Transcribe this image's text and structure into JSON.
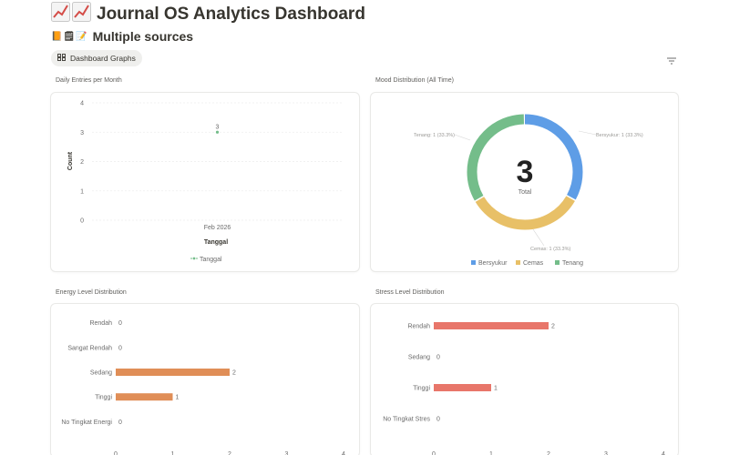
{
  "page": {
    "title": "Journal OS Analytics Dashboard",
    "title_icon": "chart-increasing-icon",
    "subtitle": "Multiple sources",
    "subtitle_icons": "📙🗒📝"
  },
  "view_tab": {
    "label": "Dashboard Graphs",
    "icon": "grid-icon"
  },
  "colors": {
    "bersyukur": "#5e9de6",
    "cemas": "#e8c067",
    "tenang": "#74bd8a",
    "energy_bar": "#e08e57",
    "stress_bar": "#e8766a",
    "line": "#74bd8a"
  },
  "charts": [
    {
      "label": "Daily Entries per Month",
      "chart_data": {
        "type": "line",
        "x": [
          "Feb 2026"
        ],
        "series": [
          {
            "name": "Tanggal",
            "values": [
              3
            ]
          }
        ],
        "xlabel": "Tanggal",
        "ylabel": "Count",
        "ylim": [
          0,
          4
        ],
        "yticks": [
          "0",
          "1",
          "2",
          "3",
          "4"
        ],
        "data_labels": [
          "3"
        ],
        "legend": "bottom",
        "grid": true
      }
    },
    {
      "label": "Mood Distribution (All Time)",
      "chart_data": {
        "type": "pie",
        "categories": [
          "Bersyukur",
          "Cemas",
          "Tenang"
        ],
        "values": [
          1,
          1,
          1
        ],
        "slice_labels": [
          "Bersyukur: 1 (33.3%)",
          "Cemas: 1 (33.3%)",
          "Tenang: 1 (33.3%)"
        ],
        "center_value": "3",
        "center_label": "Total",
        "legend": "bottom"
      }
    },
    {
      "label": "Energy Level Distribution",
      "chart_data": {
        "type": "bar",
        "orientation": "horizontal",
        "categories": [
          "Rendah",
          "Sangat Rendah",
          "Sedang",
          "Tinggi",
          "No Tingkat Energi"
        ],
        "values": [
          0,
          0,
          2,
          1,
          0
        ],
        "xlim": [
          0,
          4
        ],
        "xticks": [
          "0",
          "1",
          "2",
          "3",
          "4"
        ]
      }
    },
    {
      "label": "Stress Level Distribution",
      "chart_data": {
        "type": "bar",
        "orientation": "horizontal",
        "categories": [
          "Rendah",
          "Sedang",
          "Tinggi",
          "No Tingkat Stres"
        ],
        "values": [
          2,
          0,
          1,
          0
        ],
        "xlim": [
          0,
          4
        ],
        "xticks": [
          "0",
          "1",
          "2",
          "3",
          "4"
        ]
      }
    }
  ]
}
